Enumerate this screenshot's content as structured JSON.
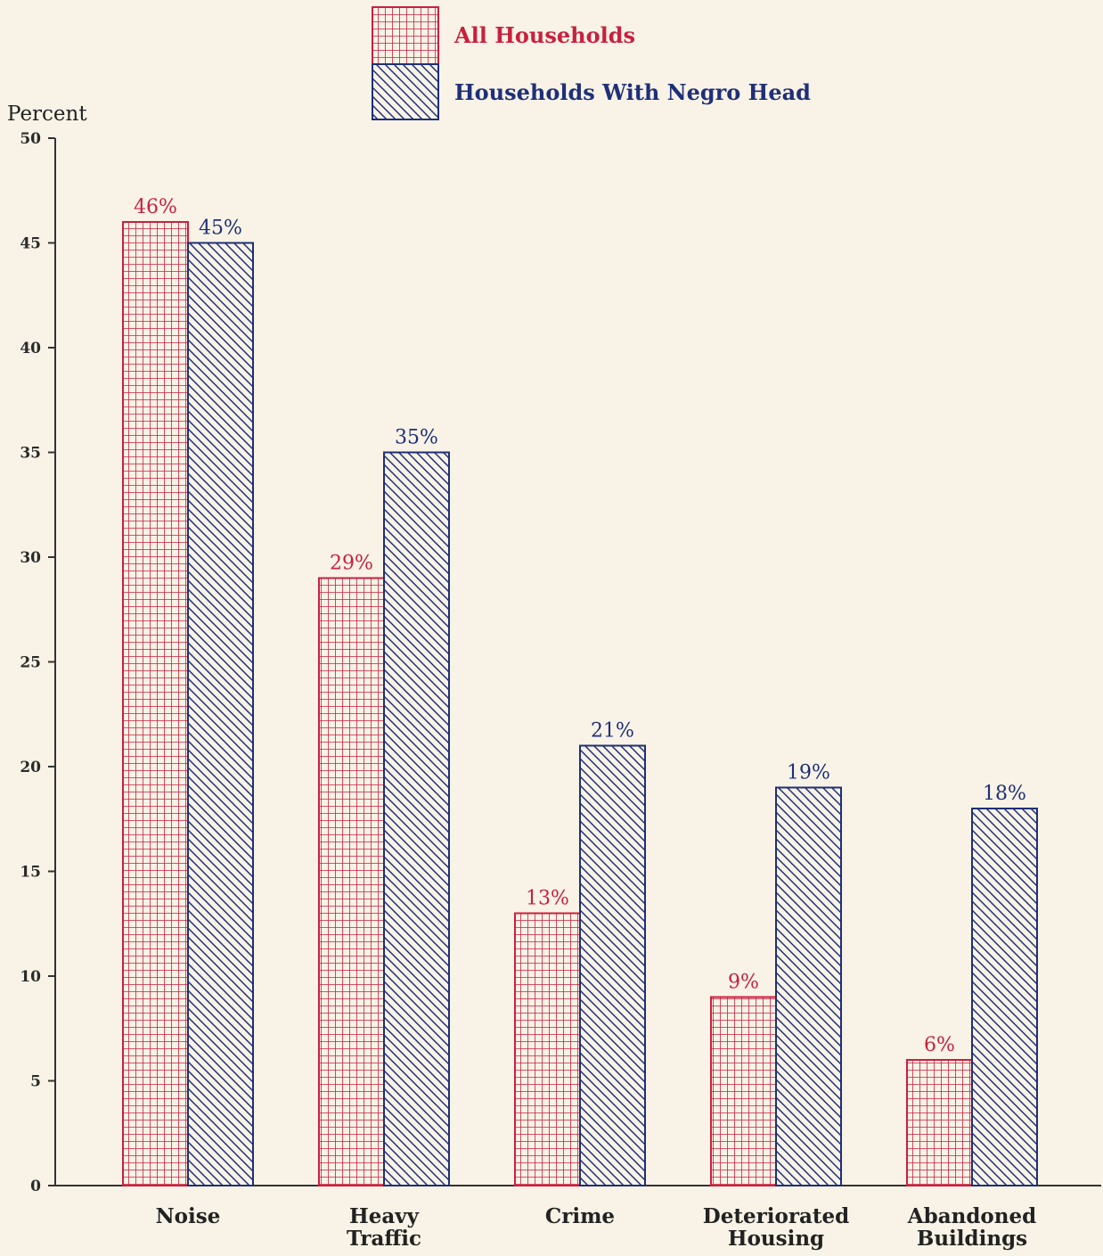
{
  "colors": {
    "series_a": "#c8203f",
    "series_b": "#1f2f78",
    "axis": "#333333",
    "background": "#f8f3e6"
  },
  "chart_data": {
    "type": "bar",
    "ylabel": "Percent",
    "ylim": [
      0,
      50
    ],
    "yticks": [
      0,
      5,
      10,
      15,
      20,
      25,
      30,
      35,
      40,
      45,
      50
    ],
    "categories": [
      [
        "Noise"
      ],
      [
        "Heavy",
        "Traffic"
      ],
      [
        "Crime"
      ],
      [
        "Deteriorated",
        "Housing"
      ],
      [
        "Abandoned",
        "Buildings"
      ]
    ],
    "series": [
      {
        "name": "All Households",
        "pattern": "grid",
        "values": [
          46,
          29,
          13,
          9,
          6
        ],
        "labels": [
          "46%",
          "29%",
          "13%",
          "9%",
          "6%"
        ]
      },
      {
        "name": "Households With Negro Head",
        "pattern": "diagonal-hatch",
        "values": [
          45,
          35,
          21,
          19,
          18
        ],
        "labels": [
          "45%",
          "35%",
          "21%",
          "19%",
          "18%"
        ]
      }
    ],
    "legend": "top-center",
    "grid": false
  }
}
